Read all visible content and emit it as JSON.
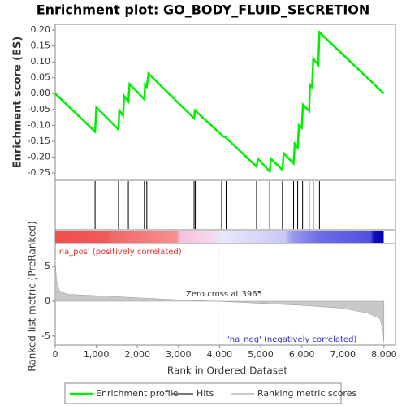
{
  "chart_data": [
    {
      "type": "line",
      "title": "Enrichment plot: GO_BODY_FLUID_SECRETION",
      "ylabel": "Enrichment score (ES)",
      "xlim": [
        0,
        8280
      ],
      "ylim": [
        -0.273,
        0.218
      ],
      "yticks": [
        {
          "value": 0.2,
          "label": "0.20"
        },
        {
          "value": 0.15,
          "label": "0.15"
        },
        {
          "value": 0.1,
          "label": "0.10"
        },
        {
          "value": 0.05,
          "label": "0.05"
        },
        {
          "value": 0,
          "label": "0.00"
        },
        {
          "value": -0.05,
          "label": "-0.05"
        },
        {
          "value": -0.1,
          "label": "-0.10"
        },
        {
          "value": -0.15,
          "label": "-0.15"
        },
        {
          "value": -0.2,
          "label": "-0.20"
        },
        {
          "value": -0.25,
          "label": "-0.25"
        }
      ],
      "x": [
        0,
        970,
        1000,
        1540,
        1560,
        1650,
        1680,
        1780,
        1810,
        2170,
        2190,
        2230,
        2270,
        3380,
        3400,
        4050,
        4080,
        4160,
        4180,
        4900,
        4930,
        5220,
        5250,
        5530,
        5560,
        5800,
        5830,
        5900,
        5930,
        6000,
        6030,
        6180,
        6200,
        6250,
        6280,
        6400,
        6430,
        8000
      ],
      "series": [
        {
          "name": "Enrichment profile",
          "color": "#00ee00",
          "values": [
            0,
            -0.12,
            -0.043,
            -0.113,
            -0.053,
            -0.07,
            -0.008,
            -0.025,
            0.03,
            -0.018,
            0.03,
            0.022,
            0.063,
            -0.078,
            -0.053,
            -0.13,
            -0.135,
            -0.138,
            -0.142,
            -0.23,
            -0.205,
            -0.245,
            -0.205,
            -0.24,
            -0.188,
            -0.22,
            -0.158,
            -0.17,
            -0.1,
            -0.108,
            -0.035,
            -0.055,
            0.028,
            0.02,
            0.11,
            0.09,
            0.193,
            0
          ]
        }
      ]
    },
    {
      "type": "hits",
      "name": "Hits",
      "color": "#000000",
      "x": [
        970,
        1540,
        1650,
        1780,
        2170,
        2230,
        3380,
        3410,
        4050,
        4160,
        4900,
        5220,
        5530,
        5800,
        5900,
        6020,
        6180,
        6280,
        6430
      ]
    },
    {
      "type": "area",
      "ylabel": "Ranked list metric (PreRanked)",
      "xlabel": "Rank in Ordered Dataset",
      "ylim": [
        -6.3,
        7.7
      ],
      "yticks": [
        5,
        0,
        -5
      ],
      "xticks": [
        0,
        {
          "value": 1000,
          "label": "1,000"
        },
        {
          "value": 2000,
          "label": "2,000"
        },
        {
          "value": 3000,
          "label": "3,000"
        },
        {
          "value": 4000,
          "label": "4,000"
        },
        {
          "value": 5000,
          "label": "5,000"
        },
        {
          "value": 6000,
          "label": "6,000"
        },
        {
          "value": 7000,
          "label": "7,000"
        },
        {
          "value": 8000,
          "label": "8,000"
        }
      ],
      "x": [
        0,
        30,
        100,
        300,
        1000,
        2000,
        3000,
        3965,
        5000,
        6000,
        7000,
        7600,
        7900,
        7970,
        8000
      ],
      "series": [
        {
          "name": "Ranking metric scores",
          "color": "#c8c8c8",
          "values": [
            6,
            3,
            1.5,
            1.0,
            0.8,
            0.5,
            0.2,
            0,
            -0.3,
            -0.6,
            -1.0,
            -1.7,
            -2.5,
            -4,
            -6
          ]
        }
      ],
      "pos_label": "'na_pos' (positively correlated)",
      "neg_label": "'na_neg' (negatively correlated)",
      "zero_label": "Zero cross at 3965",
      "zero_cross": 3965
    }
  ]
}
